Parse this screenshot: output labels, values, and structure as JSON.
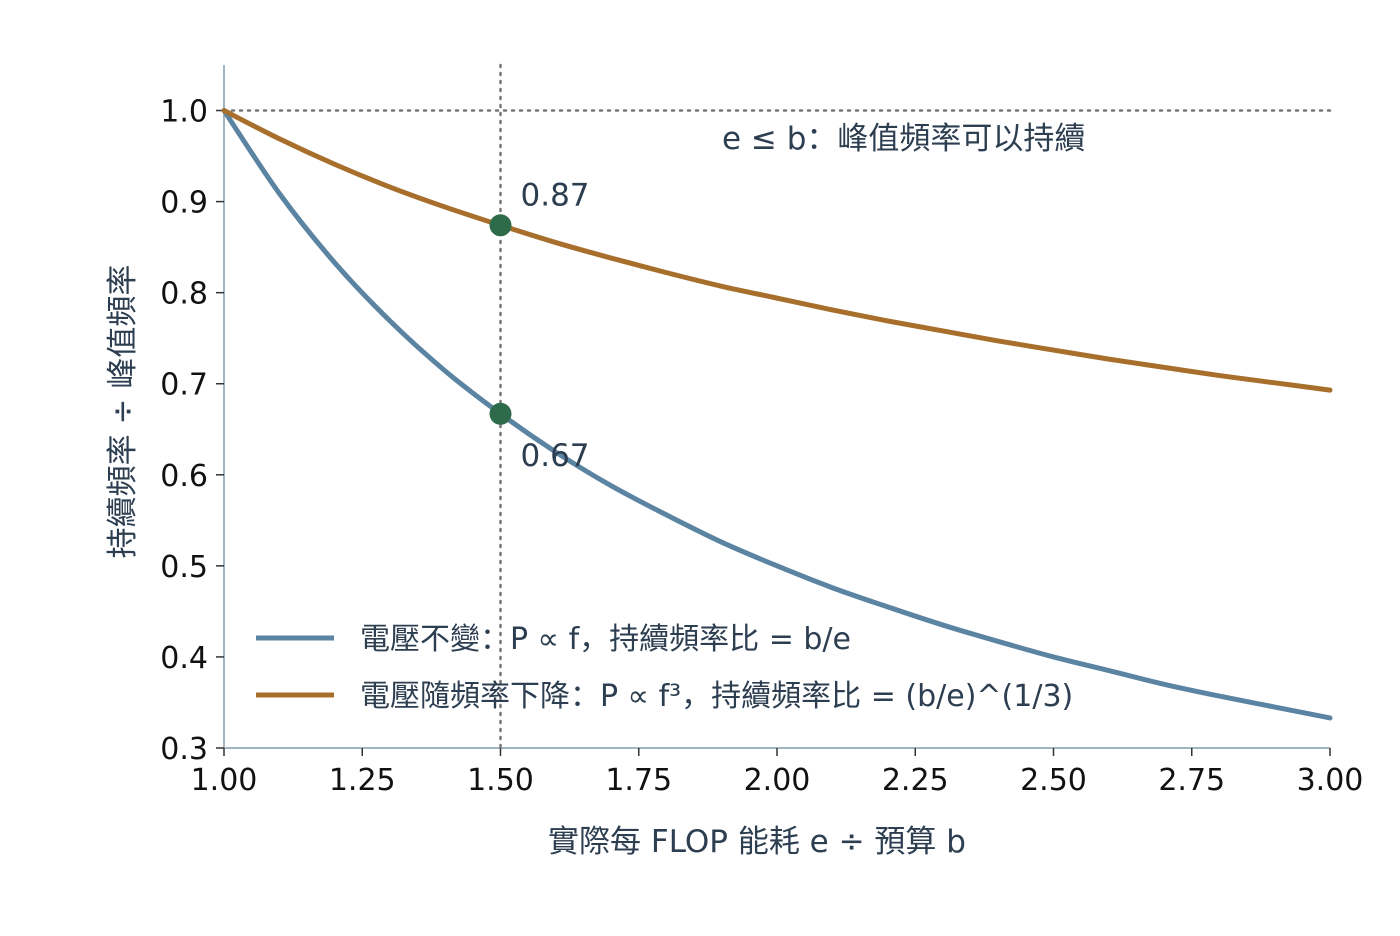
{
  "chart_data": {
    "type": "line",
    "title": "",
    "xlabel": "實際每 FLOP 能耗 e ÷ 預算 b",
    "ylabel": "持續頻率 ÷ 峰值頻率",
    "xlim": [
      1.0,
      3.0
    ],
    "ylim": [
      0.3,
      1.05
    ],
    "x_ticks": [
      "1.00",
      "1.25",
      "1.50",
      "1.75",
      "2.00",
      "2.25",
      "2.50",
      "2.75",
      "3.00"
    ],
    "y_ticks": [
      "0.3",
      "0.4",
      "0.5",
      "0.6",
      "0.7",
      "0.8",
      "0.9",
      "1.0"
    ],
    "grid": false,
    "legend_position": "lower-left",
    "series": [
      {
        "name": "電壓不變：P ∝ f，持續頻率比 = b/e",
        "color": "#5b84a3",
        "x": [
          1.0,
          1.1,
          1.2,
          1.3,
          1.4,
          1.5,
          1.6,
          1.7,
          1.8,
          1.9,
          2.0,
          2.1,
          2.2,
          2.3,
          2.4,
          2.5,
          2.6,
          2.7,
          2.8,
          2.9,
          3.0
        ],
        "y": [
          1.0,
          0.909,
          0.833,
          0.769,
          0.714,
          0.667,
          0.625,
          0.588,
          0.556,
          0.526,
          0.5,
          0.476,
          0.455,
          0.435,
          0.417,
          0.4,
          0.385,
          0.37,
          0.357,
          0.345,
          0.333
        ]
      },
      {
        "name": "電壓隨頻率下降：P ∝ f³，持續頻率比 = (b/e)^(1/3)",
        "color": "#a86f2c",
        "x": [
          1.0,
          1.1,
          1.2,
          1.3,
          1.4,
          1.5,
          1.6,
          1.7,
          1.8,
          1.9,
          2.0,
          2.1,
          2.2,
          2.3,
          2.4,
          2.5,
          2.6,
          2.7,
          2.8,
          2.9,
          3.0
        ],
        "y": [
          1.0,
          0.969,
          0.941,
          0.916,
          0.894,
          0.874,
          0.855,
          0.838,
          0.822,
          0.807,
          0.794,
          0.781,
          0.769,
          0.758,
          0.747,
          0.737,
          0.727,
          0.718,
          0.709,
          0.701,
          0.693
        ]
      }
    ],
    "reference_lines": [
      {
        "orientation": "horizontal",
        "value": 1.0,
        "style": "dotted"
      },
      {
        "orientation": "vertical",
        "value": 1.5,
        "style": "dotted"
      }
    ],
    "markers": [
      {
        "x": 1.5,
        "y": 0.874,
        "label": "0.87"
      },
      {
        "x": 1.5,
        "y": 0.667,
        "label": "0.67"
      }
    ],
    "marker_color": "#2e6b4a",
    "annotation": "e ≤ b：峰值頻率可以持續"
  }
}
